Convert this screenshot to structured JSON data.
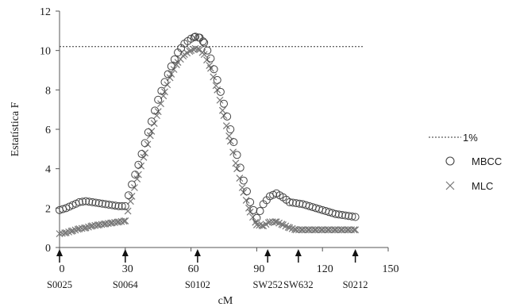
{
  "chart_data": {
    "type": "scatter",
    "xlabel": "cM",
    "ylabel": "Estatística F",
    "xlim": [
      0,
      150
    ],
    "ylim": [
      0,
      12
    ],
    "x_ticks": [
      "0",
      "30",
      "60",
      "90",
      "120",
      "150"
    ],
    "y_ticks": [
      "0",
      "2",
      "4",
      "6",
      "8",
      "10",
      "12"
    ],
    "grid": false,
    "legend_position": "right",
    "threshold": {
      "name": "1%",
      "value": 10.2,
      "style": "dotted"
    },
    "markers": [
      {
        "label": "S0025",
        "x": 0
      },
      {
        "label": "S0064",
        "x": 30
      },
      {
        "label": "S0102",
        "x": 63
      },
      {
        "label": "SW252",
        "x": 95
      },
      {
        "label": "SW632",
        "x": 109
      },
      {
        "label": "S0212",
        "x": 135
      }
    ],
    "series": [
      {
        "name": "MBCC",
        "marker": "circle",
        "x": [
          0,
          3,
          6,
          9,
          12,
          15,
          18,
          21,
          24,
          27,
          30,
          33,
          36,
          39,
          42,
          45,
          48,
          51,
          54,
          57,
          60,
          62,
          64,
          66,
          69,
          72,
          75,
          78,
          81,
          84,
          87,
          90,
          93,
          96,
          99,
          102,
          105,
          108,
          111,
          114,
          117,
          120,
          123,
          126,
          129,
          132,
          135
        ],
        "values": [
          1.9,
          2.0,
          2.15,
          2.3,
          2.35,
          2.3,
          2.25,
          2.2,
          2.15,
          2.1,
          2.1,
          3.2,
          4.2,
          5.3,
          6.4,
          7.5,
          8.4,
          9.2,
          9.9,
          10.35,
          10.6,
          10.7,
          10.65,
          10.4,
          9.6,
          8.5,
          7.3,
          6.0,
          4.7,
          3.4,
          2.3,
          1.5,
          2.2,
          2.6,
          2.75,
          2.55,
          2.3,
          2.25,
          2.2,
          2.1,
          2.0,
          1.9,
          1.8,
          1.7,
          1.65,
          1.6,
          1.55
        ]
      },
      {
        "name": "MLC",
        "marker": "x",
        "x": [
          0,
          3,
          6,
          9,
          12,
          15,
          18,
          21,
          24,
          27,
          30,
          33,
          36,
          39,
          42,
          45,
          48,
          51,
          54,
          57,
          60,
          62,
          64,
          66,
          69,
          72,
          75,
          78,
          81,
          84,
          87,
          90,
          93,
          96,
          99,
          102,
          105,
          108,
          111,
          114,
          117,
          120,
          123,
          126,
          129,
          132,
          135
        ],
        "values": [
          0.7,
          0.75,
          0.85,
          0.95,
          1.0,
          1.1,
          1.15,
          1.2,
          1.25,
          1.3,
          1.35,
          2.6,
          3.7,
          4.8,
          5.9,
          6.9,
          7.9,
          8.8,
          9.4,
          9.8,
          10.0,
          10.1,
          10.05,
          9.8,
          9.1,
          8.0,
          6.7,
          5.4,
          4.0,
          2.8,
          1.8,
          1.15,
          1.1,
          1.3,
          1.3,
          1.15,
          1.0,
          0.9,
          0.9,
          0.9,
          0.9,
          0.9,
          0.9,
          0.9,
          0.9,
          0.9,
          0.9
        ]
      }
    ]
  }
}
